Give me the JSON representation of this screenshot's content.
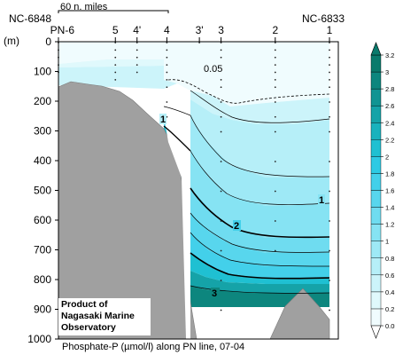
{
  "chart_data": {
    "type": "contour",
    "title": "Phosphate-P (µmol/l) along PN line, 07-04",
    "ylabel": "(m)",
    "yticks": [
      0,
      100,
      200,
      300,
      400,
      500,
      600,
      700,
      800,
      900,
      1000
    ],
    "ylim": [
      0,
      1000
    ],
    "stations": [
      {
        "label": "PN-6",
        "x": 1
      },
      {
        "label": "5",
        "x": 3.1
      },
      {
        "label": "4'",
        "x": 3.9
      },
      {
        "label": "4",
        "x": 5.0
      },
      {
        "label": "3'",
        "x": 6.2
      },
      {
        "label": "3",
        "x": 7.0
      },
      {
        "label": "2",
        "x": 9.0
      },
      {
        "label": "1",
        "x": 11.0
      }
    ],
    "section_ends": {
      "left": "NC-6848",
      "right": "NC-6833"
    },
    "scale_bar": "60 n. miles",
    "colorbar": {
      "levels": [
        0.05,
        0.2,
        0.4,
        0.6,
        0.8,
        1.0,
        1.2,
        1.4,
        1.6,
        1.8,
        2.0,
        2.2,
        2.4,
        2.6,
        2.8,
        3.0,
        3.2
      ],
      "labels": [
        "0.05",
        "0.2",
        "0.4",
        "0.6",
        "0.8",
        "1",
        "1.2",
        "1.4",
        "1.6",
        "1.8",
        "2",
        "2.2",
        "2.4",
        "2.6",
        "2.8",
        "3",
        "3.2"
      ],
      "colors": [
        "#f0fcfe",
        "#e0f9fc",
        "#ccf4fa",
        "#b6eff8",
        "#9ee9f6",
        "#86e3f3",
        "#6fdcf0",
        "#58d6ed",
        "#43d0ea",
        "#2dcae4",
        "#1fc0d2",
        "#19b2bd",
        "#15a3a8",
        "#119493",
        "#0d867e",
        "#0a7a6c"
      ]
    },
    "contour_labels": [
      "0.05",
      "1",
      "1",
      "2",
      "3"
    ],
    "note": [
      "Product of",
      "Nagasaki Marine",
      "Observatory"
    ]
  }
}
